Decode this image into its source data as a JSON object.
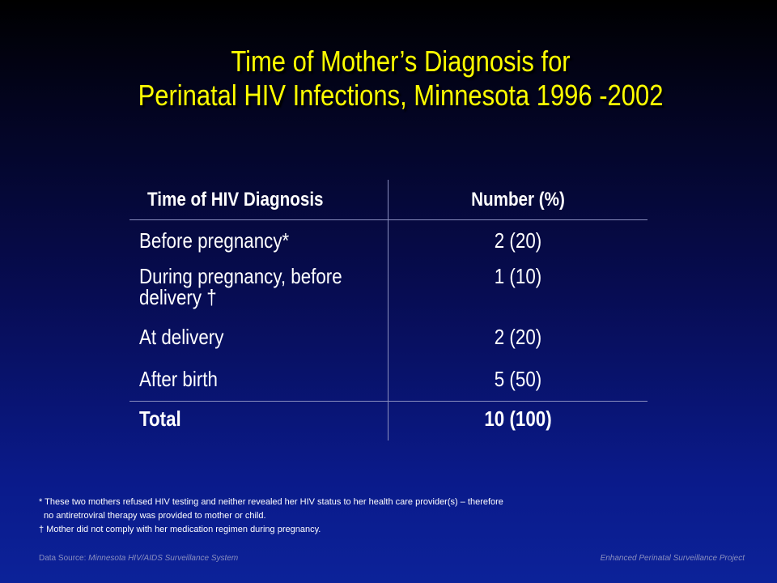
{
  "title": {
    "line1": "Time of Mother’s Diagnosis for",
    "line2": "Perinatal HIV Infections, Minnesota 1996 -2002"
  },
  "table": {
    "headers": [
      "Time of HIV Diagnosis",
      "Number (%)"
    ],
    "rows": [
      {
        "label": "Before pregnancy*",
        "value": "2 (20)"
      },
      {
        "label": "During pregnancy, before delivery †",
        "value": "1 (10)"
      },
      {
        "label": "At delivery",
        "value": "2 (20)"
      },
      {
        "label": "After birth",
        "value": "5 (50)"
      }
    ],
    "total": {
      "label": "Total",
      "value": "10 (100)"
    }
  },
  "footnotes": {
    "f1_line1": "* These two mothers refused HIV testing and neither revealed her HIV status to her health care provider(s) – therefore",
    "f1_line2": "no antiretroviral therapy was provided to mother or child.",
    "f2": "† Mother did not comply with her medication regimen during pregnancy."
  },
  "footer": {
    "source_prefix": "Data Source: ",
    "source": "Minnesota HIV/AIDS Surveillance System",
    "project": "Enhanced Perinatal Surveillance Project"
  }
}
